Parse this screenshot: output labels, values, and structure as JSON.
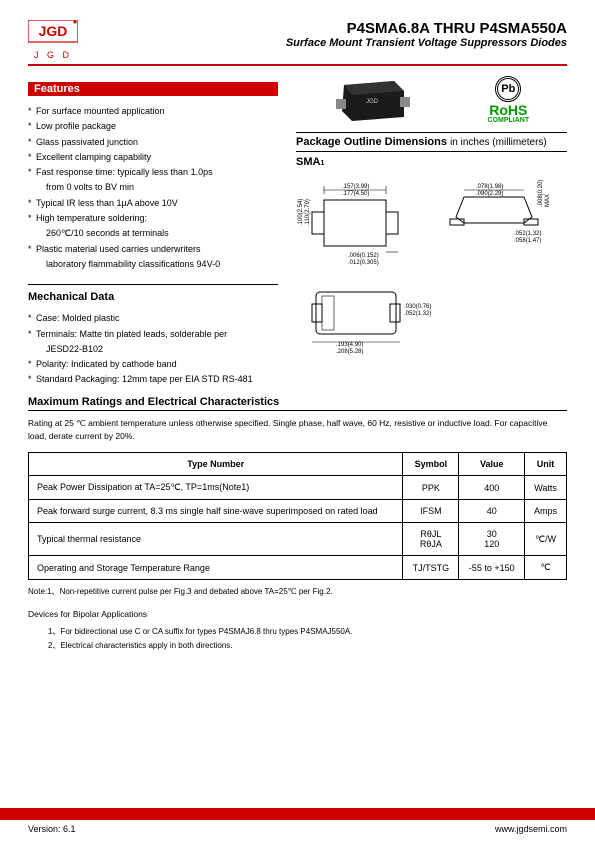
{
  "header": {
    "logo_text": "J G D",
    "title": "P4SMA6.8A THRU P4SMA550A",
    "subtitle": "Surface Mount Transient Voltage Suppressors Diodes"
  },
  "features": {
    "heading": "Features",
    "items": [
      "For surface mounted application",
      "Low profile package",
      "Glass passivated junction",
      "Excellent clamping capability",
      "Fast response time: typically less than 1.0ps",
      "from 0 volts to BV min",
      "Typical IR less than 1µA above 10V",
      "High temperature soldering:",
      "260℃/10 seconds at terminals",
      "Plastic material used carries underwriters",
      "laboratory flammability classifications 94V-0"
    ],
    "indent_idx": [
      5,
      8,
      10
    ]
  },
  "rohs": {
    "pb": "Pb",
    "text": "RoHS",
    "sub": "COMPLIANT"
  },
  "package": {
    "title": "Package Outline Dimensions",
    "unit": "in inches (millimeters)",
    "label": "SMA",
    "dims": {
      "d1_in": ".157",
      "d1_mm": "(3.99)",
      "d2_in": ".177",
      "d2_mm": "(4.50)",
      "d3_in": ".078",
      "d3_mm": "(1.98)",
      "d4_in": ".090",
      "d4_mm": "(2.29)",
      "d5_in": ".100",
      "d5_mm": "(2.54)",
      "d6_in": ".110",
      "d6_mm": "(2.79)",
      "d7_in": ".006",
      "d7_mm": "(0.152)",
      "d8_in": ".012",
      "d8_mm": "(0.305)",
      "d9_in": ".052",
      "d9_mm": "(1.32)",
      "d10_in": ".058",
      "d10_mm": "(1.47)",
      "d11_in": ".030",
      "d11_mm": "(0.76)",
      "d12_in": ".052",
      "d12_mm": "(1.32)",
      "d13_in": ".193",
      "d13_mm": "(4.90)",
      "d14_in": ".208",
      "d14_mm": "(5.28)",
      "d15_in": ".008",
      "d15_mm": "(0.20)",
      "d16": "MAX"
    }
  },
  "mechanical": {
    "heading": "Mechanical Data",
    "items": [
      "Case: Molded plastic",
      "Terminals: Matte tin plated leads, solderable per",
      "JESD22-B102",
      "Polarity: Indicated by cathode band",
      "Standard Packaging: 12mm tape per EIA STD RS-481"
    ],
    "indent_idx": [
      2
    ]
  },
  "ratings": {
    "heading": "Maximum Ratings and Electrical Characteristics",
    "note": "Rating at 25 ℃ ambient temperature unless otherwise specified. Single phase, half wave, 60 Hz, resistive or inductive load. For capacitive load, derate current by 20%.",
    "columns": [
      "Type Number",
      "Symbol",
      "Value",
      "Unit"
    ],
    "rows": [
      {
        "type": "Peak Power Dissipation at TA=25℃, TP=1ms(Note1)",
        "symbol": "PPK",
        "value": "400",
        "unit": "Watts"
      },
      {
        "type": "Peak forward surge current, 8.3 ms single half sine-wave superimposed on rated load",
        "symbol": "IFSM",
        "value": "40",
        "unit": "Amps"
      },
      {
        "type": "Typical thermal resistance",
        "symbol": "RθJL\nRθJA",
        "value": "30\n120",
        "unit": "℃/W"
      },
      {
        "type": "Operating and Storage Temperature Range",
        "symbol": "TJ/TSTG",
        "value": "-55 to +150",
        "unit": "℃"
      }
    ],
    "footnote": "Note:1、Non-repetitive current pulse per Fig.3 and debated above TA=25℃ per Fig.2."
  },
  "bipolar": {
    "title": "Devices for Bipolar Applications",
    "items": [
      "1、For bidirectional use C or CA suffix for types P4SMAJ6.8 thru types P4SMAJ550A.",
      "2、Electrical characteristics apply in both directions."
    ]
  },
  "footer": {
    "version": "Version: 6.1",
    "url": "www.jgdsemi.com"
  },
  "colors": {
    "brand_red": "#c00",
    "rohs_green": "#090"
  }
}
